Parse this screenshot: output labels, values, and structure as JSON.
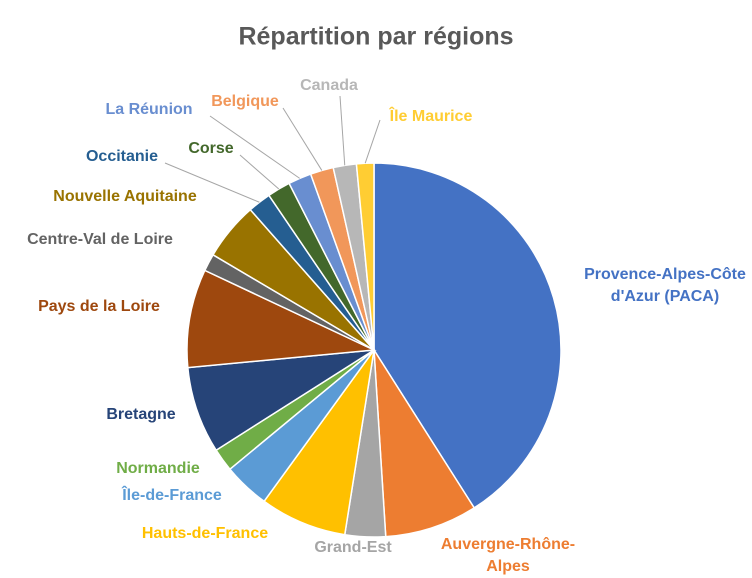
{
  "chart_data": {
    "type": "pie",
    "title": "Répartition par régions",
    "categories": [
      "Provence-Alpes-Côte d'Azur (PACA)",
      "Auvergne-Rhône-Alpes",
      "Grand-Est",
      "Hauts-de-France",
      "Île-de-France",
      "Normandie",
      "Bretagne",
      "Pays de la Loire",
      "Centre-Val de Loire",
      "Nouvelle Aquitaine",
      "Occitanie",
      "Corse",
      "La Réunion",
      "Belgique",
      "Canada",
      "Île Maurice"
    ],
    "values": [
      41,
      8,
      3.5,
      7.5,
      4,
      2,
      7.5,
      8.5,
      1.5,
      5,
      2,
      2,
      2,
      2,
      2,
      1.5
    ],
    "colors": [
      "#4472c4",
      "#ed7d31",
      "#a5a5a5",
      "#ffc000",
      "#5b9bd5",
      "#70ad47",
      "#264478",
      "#9e480e",
      "#636363",
      "#997300",
      "#255e91",
      "#43682b",
      "#698ed0",
      "#f1975a",
      "#b7b7b7",
      "#ffcd33"
    ]
  }
}
